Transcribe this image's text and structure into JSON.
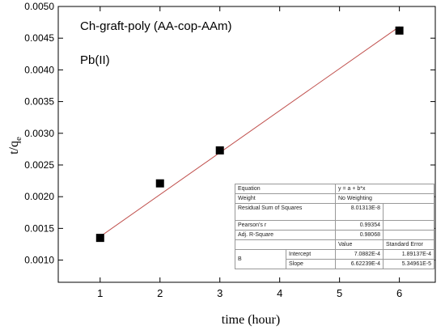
{
  "chart_data": {
    "type": "scatter",
    "title": "",
    "annotations": [
      "Ch-graft-poly (AA-cop-AAm)",
      "Pb(II)"
    ],
    "xlabel": "time (hour)",
    "ylabel": {
      "main": "t/q",
      "subscript": "e"
    },
    "xlim": [
      0.3,
      6.6
    ],
    "ylim": [
      0.00065,
      0.005
    ],
    "x_ticks": [
      "1",
      "2",
      "3",
      "4",
      "5",
      "6"
    ],
    "x_tick_values": [
      1,
      2,
      3,
      4,
      5,
      6
    ],
    "y_ticks": [
      "0.0010",
      "0.0015",
      "0.0020",
      "0.0025",
      "0.0030",
      "0.0035",
      "0.0040",
      "0.0045",
      "0.0050"
    ],
    "y_tick_values": [
      0.001,
      0.0015,
      0.002,
      0.0025,
      0.003,
      0.0035,
      0.004,
      0.0045,
      0.005
    ],
    "series": [
      {
        "x": [
          1,
          2,
          3,
          6
        ],
        "y": [
          0.00135,
          0.00221,
          0.00273,
          0.00462
        ],
        "marker": "square",
        "color": "#000000"
      }
    ],
    "fit_line": {
      "intercept": 0.00070882,
      "slope": 0.000662239,
      "x_range": [
        1,
        6
      ],
      "color": "#c0504d"
    },
    "fit_table": {
      "equation_label": "Equation",
      "equation": "y = a + b*x",
      "weight_label": "Weight",
      "weight": "No Weighting",
      "rss_label": "Residual Sum of Squares",
      "rss": "8.01313E-8",
      "pearson_label": "Pearson's r",
      "pearson": "0.99354",
      "adj_r2_label": "Adj. R-Square",
      "adj_r2": "0.98068",
      "value_header": "Value",
      "stderr_header": "Standard Error",
      "group_label": "B",
      "intercept_label": "Intercept",
      "intercept_value": "7.0882E-4",
      "intercept_stderr": "1.89137E-4",
      "slope_label": "Slope",
      "slope_value": "6.62239E-4",
      "slope_stderr": "5.34961E-5"
    },
    "grid": false,
    "legend": "none"
  }
}
